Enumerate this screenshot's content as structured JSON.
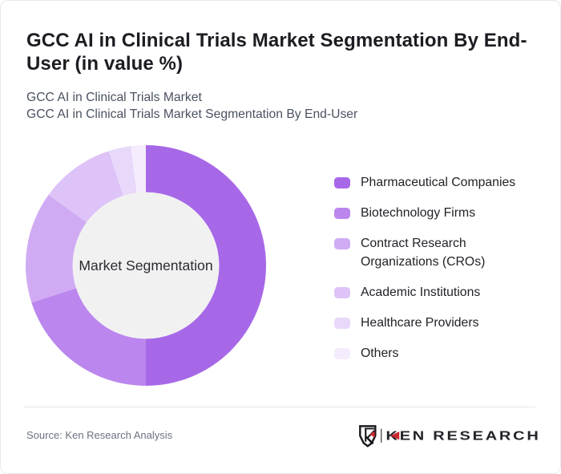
{
  "title": {
    "line1": "GCC AI in Clinical Trials Market Segmentation By End-",
    "line2": "User (in value %)"
  },
  "subtitle": {
    "line1": "GCC AI in Clinical Trials Market",
    "line2": "GCC AI in Clinical Trials Market Segmentation By End-User"
  },
  "chart_data": {
    "type": "pie",
    "subtype": "donut",
    "title": "GCC AI in Clinical Trials Market Segmentation By End-User (in value %)",
    "center_label": "Market Segmentation",
    "legend_position": "right",
    "start_angle_deg": 0,
    "direction": "clockwise",
    "inner_radius_ratio": 0.61,
    "inner_circle_color": "#f1f1f2",
    "segments": [
      {
        "label": "Pharmaceutical Companies",
        "value": 50,
        "color": "#a768e8"
      },
      {
        "label": "Biotechnology Firms",
        "value": 20,
        "color": "#bb86ee"
      },
      {
        "label": "Contract Research Organizations (CROs)",
        "value": 15,
        "color": "#d0abf3"
      },
      {
        "label": "Academic Institutions",
        "value": 10,
        "color": "#ddc3f7"
      },
      {
        "label": "Healthcare Providers",
        "value": 3,
        "color": "#e8d8fa"
      },
      {
        "label": "Others",
        "value": 2,
        "color": "#f4ecfd"
      }
    ]
  },
  "footer": {
    "source": "Source: Ken Research Analysis",
    "brand": "KEN RESEARCH",
    "brand_monogram": "K",
    "accent_red": "#cf2e33",
    "brand_text_color": "#26262c"
  }
}
